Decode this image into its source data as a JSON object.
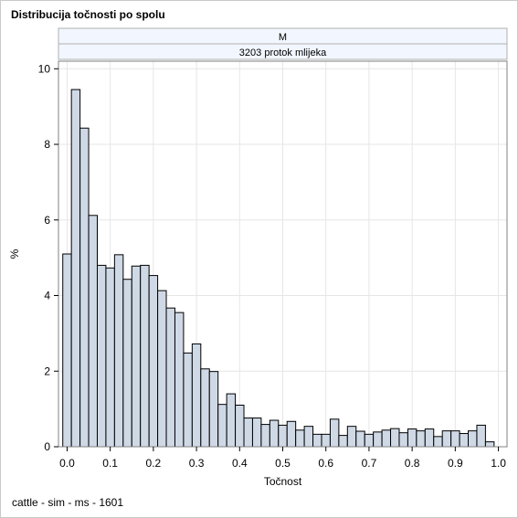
{
  "title": "Distribucija točnosti po spolu",
  "footnote": "cattle - sim - ms - 1601",
  "panel_headers": [
    "M",
    "3203 protok mlijeka"
  ],
  "colors": {
    "bar_fill": "#cfd9e6",
    "bar_stroke": "#000000",
    "header_fill": "#f2f6fe",
    "grid": "#e6e6e6",
    "axis": "#000000",
    "frame": "#808080"
  },
  "chart_data": {
    "type": "histogram",
    "xlabel": "Točnost",
    "ylabel": "%",
    "xlim": [
      -0.02,
      1.02
    ],
    "ylim": [
      0,
      10.2
    ],
    "xticks": [
      0.0,
      0.1,
      0.2,
      0.3,
      0.4,
      0.5,
      0.6,
      0.7,
      0.8,
      0.9,
      1.0
    ],
    "xtick_labels": [
      "0.0",
      "0.1",
      "0.2",
      "0.3",
      "0.4",
      "0.5",
      "0.6",
      "0.7",
      "0.8",
      "0.9",
      "1.0"
    ],
    "yticks": [
      0,
      2,
      4,
      6,
      8,
      10
    ],
    "ytick_labels": [
      "0",
      "2",
      "4",
      "6",
      "8",
      "10"
    ],
    "bin_start": -0.01,
    "bin_width": 0.02,
    "values": [
      5.1,
      9.45,
      8.43,
      6.12,
      4.8,
      4.73,
      5.08,
      4.43,
      4.78,
      4.8,
      4.53,
      4.13,
      3.67,
      3.55,
      2.48,
      2.72,
      2.06,
      1.99,
      1.12,
      1.4,
      1.1,
      0.76,
      0.76,
      0.59,
      0.7,
      0.57,
      0.67,
      0.44,
      0.54,
      0.33,
      0.33,
      0.73,
      0.3,
      0.54,
      0.41,
      0.33,
      0.39,
      0.44,
      0.48,
      0.37,
      0.47,
      0.42,
      0.47,
      0.27,
      0.42,
      0.42,
      0.35,
      0.42,
      0.57,
      0.13
    ],
    "grid": true
  }
}
